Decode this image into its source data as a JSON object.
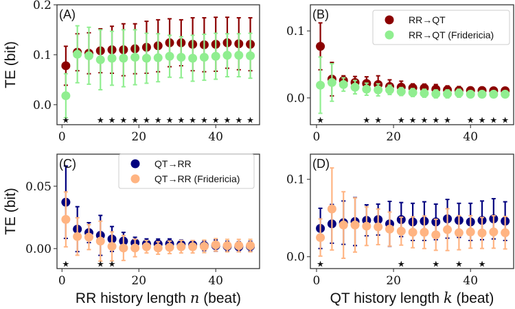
{
  "chart_data": [
    {
      "type": "scatter",
      "panel_label": "(A)",
      "ylabel": "TE (bit)",
      "xlabel": "",
      "xlim": [
        -1.3,
        51.4
      ],
      "ylim": [
        -0.04,
        0.2
      ],
      "yticks": [
        {
          "v": 0.0,
          "label": "0.0"
        },
        {
          "v": 0.1,
          "label": "0.1"
        },
        {
          "v": 0.2,
          "label": "0.2"
        }
      ],
      "xticks": [
        {
          "v": 0,
          "label": "0"
        },
        {
          "v": 20,
          "label": "20"
        },
        {
          "v": 40,
          "label": "40"
        }
      ],
      "x": [
        1,
        4,
        7,
        10,
        13,
        16,
        19,
        22,
        25,
        28,
        31,
        34,
        37,
        40,
        43,
        46,
        49
      ],
      "series": [
        {
          "name": "RR→QT",
          "color": "#8b0000",
          "values": [
            0.078,
            0.105,
            0.103,
            0.108,
            0.11,
            0.11,
            0.112,
            0.115,
            0.118,
            0.124,
            0.124,
            0.121,
            0.12,
            0.121,
            0.124,
            0.122,
            0.121
          ],
          "errors": [
            0.039,
            0.037,
            0.041,
            0.044,
            0.047,
            0.052,
            0.05,
            0.052,
            0.052,
            0.048,
            0.046,
            0.053,
            0.054,
            0.054,
            0.051,
            0.052,
            0.053
          ]
        },
        {
          "name": "RR→QT (Fridericia)",
          "color": "#90ee90",
          "values": [
            0.018,
            0.101,
            0.098,
            0.09,
            0.093,
            0.093,
            0.095,
            0.093,
            0.094,
            0.097,
            0.095,
            0.093,
            0.095,
            0.097,
            0.099,
            0.099,
            0.098
          ],
          "errors": [
            0.044,
            0.057,
            0.057,
            0.06,
            0.054,
            0.057,
            0.055,
            0.05,
            0.048,
            0.042,
            0.041,
            0.046,
            0.046,
            0.046,
            0.043,
            0.043,
            0.045
          ]
        }
      ],
      "significance_x": [
        1,
        10,
        13,
        16,
        19,
        22,
        25,
        28,
        31,
        34,
        37,
        40,
        43,
        46,
        49
      ],
      "significance_marker": "★"
    },
    {
      "type": "scatter",
      "panel_label": "(B)",
      "ylabel": "",
      "xlabel": "",
      "xlim": [
        -1.6,
        51.2
      ],
      "ylim": [
        -0.04,
        0.139
      ],
      "yticks": [
        {
          "v": 0.0,
          "label": "0.0"
        },
        {
          "v": 0.1,
          "label": "0.1"
        }
      ],
      "xticks": [
        {
          "v": 0,
          "label": "0"
        },
        {
          "v": 20,
          "label": "20"
        },
        {
          "v": 40,
          "label": "40"
        }
      ],
      "x": [
        1,
        4,
        7,
        10,
        13,
        16,
        19,
        22,
        25,
        28,
        31,
        34,
        37,
        40,
        43,
        46,
        49
      ],
      "legend": {
        "placement": "top-right",
        "entries": [
          "RR→QT",
          "RR→QT (Fridericia)"
        ]
      },
      "series": [
        {
          "name": "RR→QT",
          "color": "#8b0000",
          "values": [
            0.077,
            0.028,
            0.026,
            0.023,
            0.0215,
            0.02,
            0.017,
            0.016,
            0.015,
            0.0147,
            0.013,
            0.012,
            0.011,
            0.011,
            0.011,
            0.0106,
            0.0106
          ],
          "errors": [
            0.035,
            0.025,
            0.007,
            0.009,
            0.01,
            0.013,
            0.01,
            0.009,
            0.006,
            0.006,
            0.007,
            0.006,
            0.006,
            0.005,
            0.005,
            0.005,
            0.005
          ]
        },
        {
          "name": "RR→QT (Fridericia)",
          "color": "#90ee90",
          "values": [
            0.019,
            0.023,
            0.02,
            0.016,
            0.013,
            0.012,
            0.012,
            0.0095,
            0.008,
            0.007,
            0.006,
            0.006,
            0.007,
            0.0055,
            0.0055,
            0.0055,
            0.0055
          ],
          "errors": [
            0.042,
            0.028,
            0.01,
            0.01,
            0.009,
            0.009,
            0.007,
            0.006,
            0.006,
            0.006,
            0.006,
            0.006,
            0.006,
            0.005,
            0.005,
            0.005,
            0.005
          ]
        }
      ],
      "significance_x": [
        1,
        13,
        16,
        22,
        25,
        28,
        31,
        34,
        40,
        43,
        46,
        49
      ],
      "significance_marker": "★"
    },
    {
      "type": "scatter",
      "panel_label": "(C)",
      "ylabel": "TE (bit)",
      "xlabel": "RR history length n (beat)",
      "xlabel_parts": [
        "RR history length ",
        "n",
        " (beat)"
      ],
      "xlim": [
        -1.3,
        51.4
      ],
      "ylim": [
        -0.016,
        0.0757
      ],
      "yticks": [
        {
          "v": 0.0,
          "label": "0.00"
        },
        {
          "v": 0.05,
          "label": "0.05"
        }
      ],
      "xticks": [
        {
          "v": 0,
          "label": "0"
        },
        {
          "v": 20,
          "label": "20"
        },
        {
          "v": 40,
          "label": "40"
        }
      ],
      "x": [
        1,
        4,
        7,
        10,
        13,
        16,
        19,
        22,
        25,
        28,
        31,
        34,
        37,
        40,
        43,
        46,
        49
      ],
      "legend": {
        "placement": "top-right",
        "entries": [
          "QT→RR",
          "QT→RR (Fridericia)"
        ]
      },
      "series": [
        {
          "name": "QT→RR",
          "color": "#00007f",
          "values": [
            0.0372,
            0.0156,
            0.0128,
            0.0106,
            0.0077,
            0.006,
            0.0046,
            0.0038,
            0.0037,
            0.0038,
            0.0033,
            0.003,
            0.0024,
            0.0024,
            0.0018,
            0.0015,
            0.0018
          ],
          "errors": [
            0.029,
            0.018,
            0.008,
            0.016,
            0.01,
            0.007,
            0.0045,
            0.004,
            0.004,
            0.004,
            0.0035,
            0.0035,
            0.004,
            0.0045,
            0.004,
            0.004,
            0.004
          ]
        },
        {
          "name": "QT→RR (Fridericia)",
          "color": "#ffb482",
          "values": [
            0.0234,
            0.0097,
            0.0092,
            0.006,
            0.0018,
            0.0005,
            0.0005,
            0.0015,
            0.0005,
            0.001,
            0.0015,
            0.0015,
            0.0018,
            0.003,
            0.0024,
            0.0024,
            0.0024
          ],
          "errors": [
            0.022,
            0.015,
            0.01,
            0.016,
            0.0116,
            0.01,
            0.007,
            0.005,
            0.005,
            0.005,
            0.005,
            0.005,
            0.005,
            0.005,
            0.005,
            0.005,
            0.005
          ]
        }
      ],
      "significance_x": [
        1,
        10,
        13
      ],
      "significance_marker": "★"
    },
    {
      "type": "scatter",
      "panel_label": "(D)",
      "ylabel": "",
      "xlabel": "QT history length k (beat)",
      "xlabel_parts": [
        "QT history length ",
        "k",
        " (beat)"
      ],
      "xlim": [
        -1.6,
        51.2
      ],
      "ylim": [
        -0.0153,
        0.1325
      ],
      "yticks": [
        {
          "v": 0.0,
          "label": "0.0"
        },
        {
          "v": 0.1,
          "label": "0.1"
        }
      ],
      "xticks": [
        {
          "v": 0,
          "label": "0"
        },
        {
          "v": 20,
          "label": "20"
        },
        {
          "v": 40,
          "label": "40"
        }
      ],
      "x": [
        1,
        4,
        7,
        10,
        13,
        16,
        19,
        22,
        25,
        28,
        31,
        34,
        37,
        40,
        43,
        46,
        49
      ],
      "series": [
        {
          "name": "QT→RR",
          "color": "#00007f",
          "values": [
            0.0366,
            0.0425,
            0.044,
            0.0454,
            0.047,
            0.048,
            0.0425,
            0.048,
            0.045,
            0.046,
            0.045,
            0.049,
            0.047,
            0.045,
            0.047,
            0.049,
            0.046
          ],
          "errors": [
            0.026,
            0.025,
            0.028,
            0.031,
            0.02,
            0.02,
            0.029,
            0.022,
            0.024,
            0.025,
            0.023,
            0.025,
            0.022,
            0.024,
            0.025,
            0.026,
            0.025
          ]
        },
        {
          "name": "QT→RR (Fridericia)",
          "color": "#ffb482",
          "values": [
            0.0248,
            0.0617,
            0.041,
            0.041,
            0.0395,
            0.0386,
            0.0357,
            0.033,
            0.0316,
            0.0316,
            0.0283,
            0.035,
            0.031,
            0.032,
            0.0307,
            0.032,
            0.031
          ],
          "errors": [
            0.024,
            0.053,
            0.043,
            0.035,
            0.025,
            0.023,
            0.022,
            0.018,
            0.02,
            0.021,
            0.02,
            0.027,
            0.022,
            0.021,
            0.02,
            0.021,
            0.021
          ]
        }
      ],
      "significance_x": [
        1,
        22,
        31,
        37,
        43
      ],
      "significance_marker": "★"
    }
  ]
}
